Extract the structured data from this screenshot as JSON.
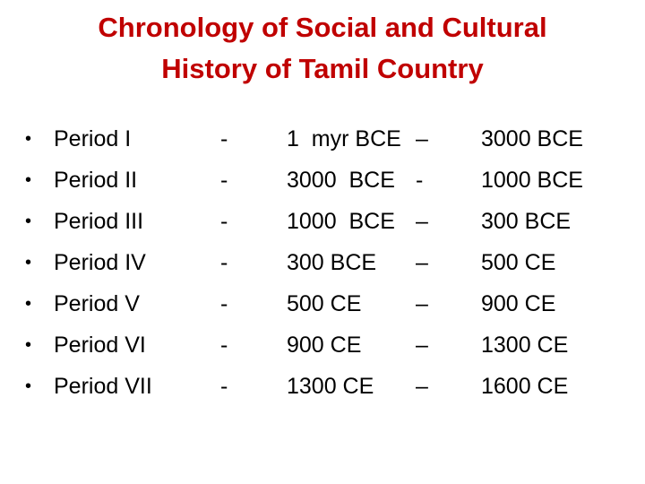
{
  "title": {
    "line1": "Chronology of Social and Cultural",
    "line2": "History of Tamil Country"
  },
  "bullet_char": "•",
  "rows": [
    {
      "period": "Period I",
      "sep1": "-",
      "start": "1  myr BCE",
      "sep2": "–",
      "end": "3000 BCE"
    },
    {
      "period": "Period II",
      "sep1": "-",
      "start": "3000  BCE",
      "sep2": "-",
      "end": "1000 BCE"
    },
    {
      "period": "Period III",
      "sep1": "-",
      "start": "1000  BCE",
      "sep2": "–",
      "end": "300 BCE"
    },
    {
      "period": "Period IV",
      "sep1": "-",
      "start": "300 BCE",
      "sep2": "–",
      "end": "500 CE"
    },
    {
      "period": "Period V",
      "sep1": "-",
      "start": "500 CE",
      "sep2": "–",
      "end": "900 CE"
    },
    {
      "period": "Period VI",
      "sep1": "-",
      "start": "900 CE",
      "sep2": "–",
      "end": "1300 CE"
    },
    {
      "period": "Period VII",
      "sep1": "-",
      "start": "1300 CE",
      "sep2": "–",
      "end": "1600 CE"
    }
  ],
  "colors": {
    "title": "#c00000",
    "text": "#000000",
    "background": "#ffffff"
  }
}
